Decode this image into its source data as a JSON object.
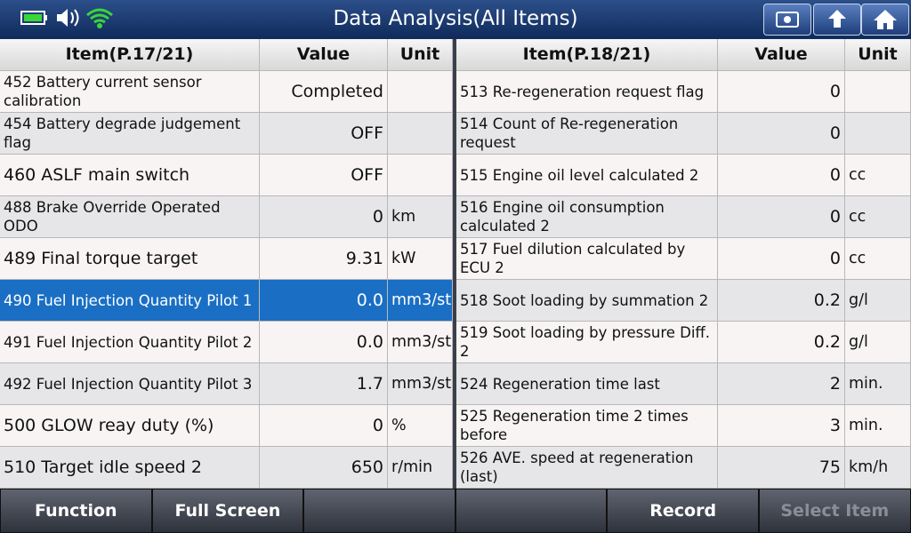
{
  "header": {
    "title": "Data Analysis(All Items)"
  },
  "tables": [
    {
      "columns": [
        "Item(P.17/21)",
        "Value",
        "Unit"
      ],
      "rows": [
        {
          "item": "452 Battery current sensor calibration",
          "value": "Completed"
        },
        {
          "item": "454 Battery degrade judgement flag",
          "value": "OFF"
        },
        {
          "item": "460 ASLF main switch",
          "value": "OFF"
        },
        {
          "item": "488 Brake Override Operated ODO",
          "value": "0",
          "unit": "km"
        },
        {
          "item": "489 Final torque target",
          "value": "9.31",
          "unit": "kW"
        },
        {
          "item": "490 Fuel Injection Quantity Pilot 1",
          "value": "0.0",
          "unit": "mm3/st",
          "selected": true
        },
        {
          "item": "491 Fuel Injection Quantity Pilot 2",
          "value": "0.0",
          "unit": "mm3/st"
        },
        {
          "item": "492 Fuel Injection Quantity Pilot 3",
          "value": "1.7",
          "unit": "mm3/st"
        },
        {
          "item": "500 GLOW reay duty (%)",
          "value": "0",
          "unit": "%"
        },
        {
          "item": "510 Target idle speed 2",
          "value": "650",
          "unit": "r/min"
        }
      ]
    },
    {
      "columns": [
        "Item(P.18/21)",
        "Value",
        "Unit"
      ],
      "rows": [
        {
          "item": "513 Re-regeneration request flag",
          "value": "0"
        },
        {
          "item": "514 Count of Re-regeneration request",
          "value": "0"
        },
        {
          "item": "515 Engine oil level calculated 2",
          "value": "0",
          "unit": "cc"
        },
        {
          "item": "516 Engine oil consumption calculated 2",
          "value": "0",
          "unit": "cc"
        },
        {
          "item": "517 Fuel dilution calculated by ECU 2",
          "value": "0",
          "unit": "cc"
        },
        {
          "item": "518 Soot loading by summation 2",
          "value": "0.2",
          "unit": "g/l"
        },
        {
          "item": "519 Soot loading by pressure Diff. 2",
          "value": "0.2",
          "unit": "g/l"
        },
        {
          "item": "524 Regeneration time last",
          "value": "2",
          "unit": "min."
        },
        {
          "item": "525 Regeneration time 2 times before",
          "value": "3",
          "unit": "min."
        },
        {
          "item": "526 AVE. speed at regeneration (last)",
          "value": "75",
          "unit": "km/h"
        }
      ]
    }
  ],
  "buttons": {
    "function": "Function",
    "full_screen": "Full Screen",
    "record": "Record",
    "select_item": "Select Item"
  }
}
